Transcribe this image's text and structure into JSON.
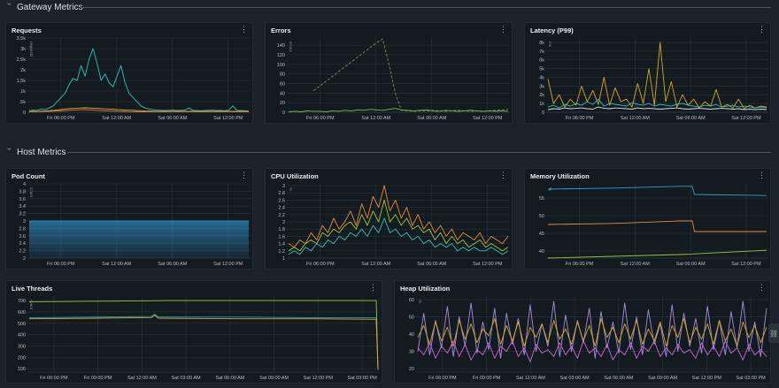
{
  "sections": {
    "gateway": "Gateway Metrics",
    "host": "Host Metrics"
  },
  "kebab_glyph": "⋮",
  "icons": {
    "chevron": "chevron-down-icon",
    "kebab": "kebab-menu-icon",
    "link": "link-icon"
  },
  "panels": {
    "requests": {
      "title": "Requests"
    },
    "errors": {
      "title": "Errors"
    },
    "latency": {
      "title": "Latency (P99)"
    },
    "pod_count": {
      "title": "Pod Count"
    },
    "cpu": {
      "title": "CPU Utilization"
    },
    "memory": {
      "title": "Memory Utilization"
    },
    "live_threads": {
      "title": "Live Threads"
    },
    "heap": {
      "title": "Heap Utilization"
    }
  },
  "chart_data": [
    {
      "id": "requests",
      "type": "line",
      "title": "Requests",
      "ylabel": "requests",
      "yticks": [
        "0",
        ".5k",
        "1k",
        "1.5k",
        "2k",
        "2.5k",
        "3k",
        "3.5k"
      ],
      "ylim": [
        0,
        3500
      ],
      "xticks": [
        "Fri 06:00 PM",
        "Sat 12:00 AM",
        "Sat 06:00 AM",
        "Sat 12:00 PM"
      ],
      "series": [
        {
          "color": "#2ec4b6",
          "values": [
            80,
            100,
            90,
            150,
            120,
            200,
            300,
            500,
            700,
            900,
            1300,
            1600,
            1500,
            2200,
            1700,
            2500,
            3000,
            2300,
            1500,
            1800,
            1400,
            1200,
            1700,
            2200,
            1400,
            900,
            700,
            500,
            300,
            200,
            150,
            120,
            100,
            90,
            80,
            90,
            100,
            80,
            90,
            100,
            200,
            90,
            80,
            70,
            80,
            90,
            100,
            80,
            90,
            70,
            100,
            300,
            90,
            80,
            70,
            60
          ]
        },
        {
          "color": "#e0b52c",
          "values": [
            30,
            40,
            35,
            50,
            60,
            70,
            90,
            110,
            130,
            150,
            170,
            180,
            190,
            200,
            210,
            200,
            190,
            180,
            170,
            160,
            150,
            140,
            130,
            120,
            110,
            100,
            90,
            80,
            70,
            60,
            55,
            50,
            45,
            40,
            40,
            40,
            40,
            40,
            40,
            40,
            40,
            40,
            40,
            40,
            40,
            40,
            40,
            40,
            40,
            40,
            40,
            40,
            40,
            40,
            40,
            40
          ]
        },
        {
          "color": "#e98b3a",
          "values": [
            20,
            25,
            30,
            35,
            40,
            45,
            50,
            60,
            70,
            80,
            90,
            100,
            110,
            120,
            120,
            110,
            100,
            90,
            80,
            70,
            60,
            55,
            50,
            45,
            40,
            35,
            30,
            30,
            30,
            30,
            30,
            30,
            30,
            30,
            30,
            30,
            30,
            30,
            30,
            30,
            30,
            30,
            30,
            30,
            30,
            30,
            30,
            30,
            30,
            30,
            30,
            30,
            30,
            30,
            30,
            30
          ]
        }
      ]
    },
    {
      "id": "errors",
      "type": "line",
      "title": "Errors",
      "ylabel": "errors",
      "yticks": [
        "0",
        "20",
        "40",
        "60",
        "80",
        "100",
        "120",
        "140"
      ],
      "ylim": [
        0,
        155
      ],
      "xticks": [
        "Fri 06:00 PM",
        "Sat 12:00 AM",
        "Sat 06:00 AM",
        "Sat 12:00 PM"
      ],
      "series": [
        {
          "color": "#8a8a52",
          "dashed": true,
          "values": [
            null,
            null,
            null,
            null,
            45,
            55,
            65,
            75,
            85,
            95,
            105,
            115,
            125,
            135,
            145,
            153,
            100,
            40,
            4,
            3,
            2,
            3,
            2,
            4,
            3,
            2,
            3,
            4,
            3,
            2,
            3,
            2,
            3,
            4,
            5,
            6
          ]
        },
        {
          "color": "#7fbf3f",
          "values": [
            1,
            2,
            1,
            3,
            2,
            2,
            1,
            3,
            2,
            4,
            3,
            5,
            4,
            6,
            5,
            4,
            6,
            8,
            5,
            4,
            3,
            4,
            5,
            3,
            2,
            4,
            3,
            2,
            3,
            4,
            3,
            2,
            3,
            2,
            3,
            2
          ]
        }
      ]
    },
    {
      "id": "latency",
      "type": "line",
      "title": "Latency (P99)",
      "ylabel": "ms",
      "yticks": [
        "0",
        "1k",
        "2k",
        "3k",
        "4k",
        "5k",
        "6k",
        "7k",
        "8k"
      ],
      "ylim": [
        0,
        8500
      ],
      "xticks": [
        "Fri 06:00 PM",
        "Sat 12:00 AM",
        "Sat 06:00 AM",
        "Sat 12:00 PM"
      ],
      "series": [
        {
          "color": "#d4a82a",
          "values": [
            3800,
            1000,
            2000,
            600,
            1500,
            800,
            3000,
            1200,
            2500,
            900,
            4000,
            800,
            2800,
            1200,
            1500,
            600,
            3300,
            1000,
            5000,
            800,
            8000,
            1200,
            3500,
            600,
            2000,
            800,
            1500,
            500,
            1200,
            700,
            2600,
            600,
            900,
            500,
            1500,
            400,
            800,
            500,
            700,
            600
          ]
        },
        {
          "color": "#2ec4b6",
          "values": [
            600,
            800,
            500,
            900,
            700,
            1000,
            800,
            1200,
            900,
            1500,
            700,
            1000,
            900,
            800,
            700,
            1100,
            900,
            800,
            1000,
            700,
            900,
            800,
            700,
            900,
            1000,
            800,
            700,
            600,
            800,
            700,
            900,
            600,
            700,
            800,
            600,
            700,
            600,
            500,
            600,
            500
          ]
        },
        {
          "color": "#e0e0e0",
          "values": [
            300,
            400,
            350,
            500,
            400,
            450,
            500,
            400,
            350,
            600,
            450,
            400,
            500,
            450,
            400,
            350,
            500,
            400,
            450,
            400,
            350,
            400,
            450,
            500,
            400,
            350,
            400,
            450,
            400,
            350,
            400,
            450,
            400,
            350,
            400,
            300,
            350,
            300,
            350,
            300
          ]
        }
      ]
    },
    {
      "id": "pod_count",
      "type": "area",
      "title": "Pod Count",
      "ylabel": "count",
      "yticks": [
        "2",
        "2.2",
        "2.4",
        "2.6",
        "2.8",
        "3",
        "3.2",
        "3.4",
        "3.6",
        "3.8",
        "4"
      ],
      "ylim": [
        2,
        4
      ],
      "xticks": [
        "Fri 06:00 PM",
        "Sat 12:00 AM",
        "Sat 06:00 AM",
        "Sat 12:00 PM"
      ],
      "series": [
        {
          "color": "#2e86b8",
          "values": [
            3,
            3,
            3,
            3,
            3,
            3,
            3,
            3,
            3,
            3
          ]
        }
      ]
    },
    {
      "id": "cpu",
      "type": "line",
      "title": "CPU Utilization",
      "ylabel": "%",
      "yticks": [
        "1",
        "1.2",
        "1.4",
        "1.6",
        "1.8",
        "2",
        "2.2",
        "2.4",
        "2.6",
        "2.8",
        "3"
      ],
      "ylim": [
        1,
        3.05
      ],
      "xticks": [
        "Fri 06:00 PM",
        "Sat 12:00 AM",
        "Sat 06:00 AM",
        "Sat 12:00 PM"
      ],
      "series": [
        {
          "color": "#e98b3a",
          "values": [
            1.4,
            1.3,
            1.5,
            1.4,
            1.7,
            1.5,
            1.9,
            1.7,
            2.1,
            1.8,
            2.0,
            2.3,
            1.9,
            2.5,
            2.1,
            2.7,
            2.4,
            3.0,
            2.3,
            2.6,
            2.1,
            2.4,
            1.9,
            2.2,
            1.8,
            2.0,
            1.7,
            1.9,
            1.6,
            1.8,
            1.5,
            1.7,
            1.6,
            1.5,
            1.7,
            1.4,
            1.6,
            1.5,
            1.4,
            1.6
          ]
        },
        {
          "color": "#9ac93a",
          "values": [
            1.2,
            1.3,
            1.2,
            1.4,
            1.5,
            1.4,
            1.7,
            1.6,
            1.8,
            1.7,
            1.9,
            2.0,
            1.8,
            2.2,
            1.9,
            2.3,
            2.0,
            2.6,
            2.0,
            2.2,
            1.9,
            2.1,
            1.8,
            1.9,
            1.7,
            1.8,
            1.5,
            1.7,
            1.4,
            1.6,
            1.4,
            1.5,
            1.3,
            1.4,
            1.5,
            1.3,
            1.4,
            1.3,
            1.2,
            1.3
          ]
        },
        {
          "color": "#2ec4b6",
          "values": [
            1.1,
            1.2,
            1.1,
            1.3,
            1.2,
            1.4,
            1.3,
            1.5,
            1.4,
            1.6,
            1.5,
            1.7,
            1.6,
            1.8,
            1.6,
            1.9,
            1.7,
            2.1,
            1.7,
            1.8,
            1.6,
            1.7,
            1.5,
            1.6,
            1.4,
            1.5,
            1.3,
            1.4,
            1.3,
            1.4,
            1.2,
            1.3,
            1.2,
            1.3,
            1.2,
            1.2,
            1.3,
            1.2,
            1.1,
            1.2
          ]
        }
      ]
    },
    {
      "id": "memory",
      "type": "line",
      "title": "Memory Utilization",
      "ylabel": "%",
      "yticks": [
        "40",
        "45",
        "50",
        "55"
      ],
      "ylim": [
        38,
        59
      ],
      "xticks": [
        "Fri 06:00 PM",
        "Sat 12:00 AM",
        "Sat 06:00 AM",
        "Sat 12:00 PM"
      ],
      "series": [
        {
          "color": "#2ea0c8",
          "x": [
            0,
            0.3,
            0.6,
            0.66,
            0.67,
            1
          ],
          "values": [
            57.5,
            57.8,
            58.3,
            58.3,
            56,
            55.7
          ]
        },
        {
          "color": "#e98b3a",
          "x": [
            0,
            0.3,
            0.6,
            0.66,
            0.67,
            1
          ],
          "values": [
            47.5,
            47.8,
            48.5,
            48.5,
            45.5,
            45.5
          ]
        },
        {
          "color": "#9ac93a",
          "x": [
            0,
            0.3,
            0.6,
            0.66,
            0.67,
            1
          ],
          "values": [
            38,
            38.5,
            39,
            39.1,
            39.2,
            40.2
          ]
        }
      ]
    },
    {
      "id": "live_threads",
      "type": "line",
      "title": "Live Threads",
      "ylabel": "count",
      "yticks": [
        "100",
        "200",
        "300",
        "400",
        "500",
        "600",
        "700"
      ],
      "ylim": [
        70,
        740
      ],
      "xticks": [
        "Fri 06:00 PM",
        "Fri 09:00 PM",
        "Sat 12:00 AM",
        "Sat 03:00 AM",
        "Sat 06:00 AM",
        "Sat 09:00 AM",
        "Sat 12:00 PM",
        "Sat 03:00 PM"
      ],
      "series": [
        {
          "color": "#9ac93a",
          "x": [
            0,
            0.2,
            0.4,
            0.6,
            0.8,
            0.995,
            1
          ],
          "values": [
            690,
            695,
            700,
            700,
            700,
            700,
            90
          ]
        },
        {
          "color": "#2ea0c8",
          "x": [
            0,
            0.2,
            0.35,
            0.36,
            0.37,
            0.6,
            0.8,
            0.995,
            1
          ],
          "values": [
            550,
            555,
            560,
            580,
            555,
            555,
            550,
            550,
            90
          ]
        },
        {
          "color": "#d4a82a",
          "x": [
            0,
            0.2,
            0.35,
            0.36,
            0.37,
            0.6,
            0.8,
            0.995,
            1
          ],
          "values": [
            540,
            545,
            550,
            570,
            545,
            540,
            540,
            535,
            90
          ]
        }
      ]
    },
    {
      "id": "heap",
      "type": "line",
      "title": "Heap Utilization",
      "ylabel": "%",
      "yticks": [
        "20",
        "30",
        "40",
        "50",
        "60"
      ],
      "ylim": [
        18,
        62
      ],
      "xticks": [
        "Fri 06:00 PM",
        "Fri 09:00 PM",
        "Sat 12:00 AM",
        "Sat 03:00 AM",
        "Sat 06:00 AM",
        "Sat 09:00 AM",
        "Sat 12:00 PM",
        "Sat 03:00 PM"
      ],
      "series": [
        {
          "color": "#a58de0",
          "values": [
            30,
            52,
            28,
            48,
            32,
            56,
            27,
            50,
            33,
            58,
            29,
            47,
            31,
            55,
            26,
            52,
            34,
            49,
            28,
            57,
            30,
            46,
            33,
            59,
            27,
            51,
            30,
            48,
            35,
            55,
            26,
            53,
            32,
            47,
            29,
            58,
            31,
            50,
            28,
            54,
            34,
            46,
            27,
            57,
            30,
            52,
            33,
            49,
            29,
            56,
            31,
            48,
            28,
            53,
            32,
            59,
            30,
            47,
            27,
            55
          ]
        },
        {
          "color": "#d4a82a",
          "values": [
            38,
            45,
            34,
            47,
            36,
            44,
            33,
            48,
            37,
            46,
            35,
            43,
            39,
            49,
            34,
            45,
            36,
            47,
            33,
            44,
            38,
            46,
            35,
            48,
            37,
            43,
            34,
            47,
            36,
            45,
            33,
            49,
            38,
            44,
            35,
            46,
            37,
            48,
            34,
            43,
            36,
            47,
            33,
            45,
            38,
            49,
            35,
            44,
            37,
            46,
            34,
            48,
            36,
            43,
            33,
            47,
            38,
            45,
            35,
            44
          ]
        },
        {
          "color": "#c86ad6",
          "values": [
            32,
            28,
            35,
            26,
            33,
            29,
            36,
            27,
            34,
            25,
            31,
            28,
            35,
            26,
            33,
            30,
            36,
            27,
            32,
            24,
            34,
            29,
            31,
            27,
            35,
            28,
            33,
            26,
            36,
            29,
            32,
            27,
            34,
            25,
            31,
            28,
            35,
            26,
            33,
            30,
            36,
            27,
            32,
            28,
            34,
            29,
            31,
            26,
            35,
            28,
            33,
            27,
            36,
            29,
            32,
            25,
            34,
            28,
            31,
            27
          ]
        }
      ]
    }
  ]
}
